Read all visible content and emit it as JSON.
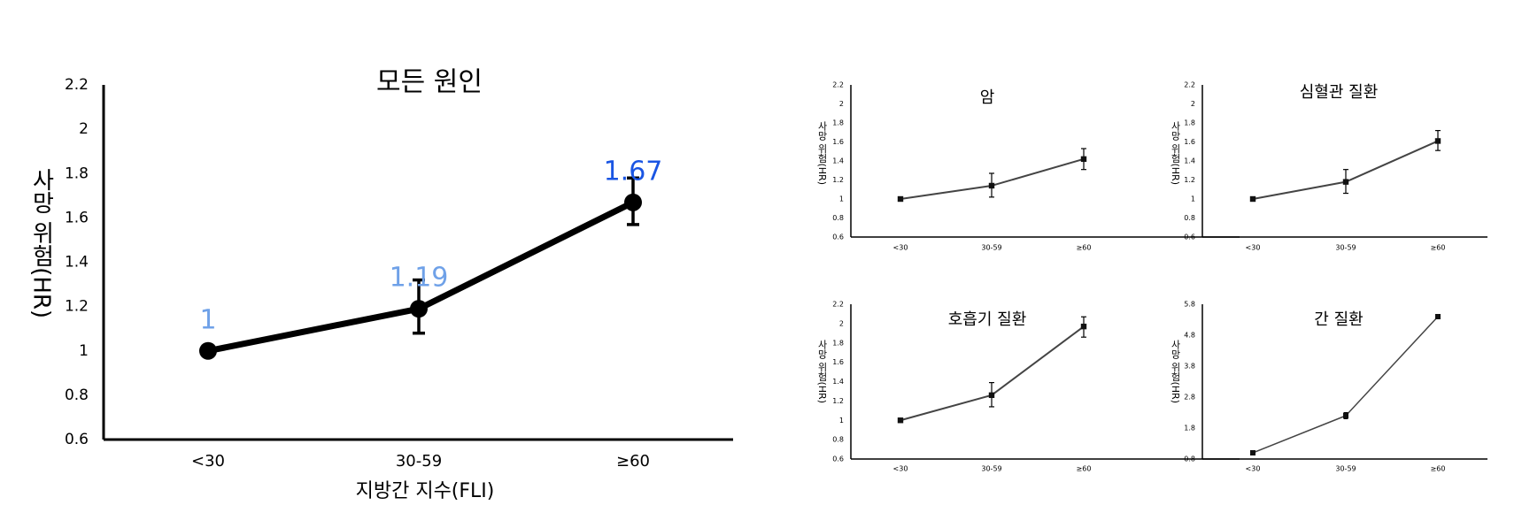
{
  "chart_data": [
    {
      "type": "line",
      "title": "모든 원인",
      "xlabel": "지방간 지수(FLI)",
      "ylabel": "사망 위험(HR)",
      "categories": [
        "<30",
        "30-59",
        "≥60"
      ],
      "values": [
        1,
        1.19,
        1.67
      ],
      "error_low": [
        1,
        1.08,
        1.57
      ],
      "error_high": [
        1,
        1.32,
        1.78
      ],
      "value_labels": [
        "1",
        "1.19",
        "1.67"
      ],
      "value_label_colors": [
        "#6fa1e8",
        "#6fa1e8",
        "#1a55e3"
      ],
      "ylim": [
        0.6,
        2.2
      ],
      "yticks": [
        "0.6",
        "0.8",
        "1",
        "1.2",
        "1.4",
        "1.6",
        "1.8",
        "2",
        "2.2"
      ],
      "ytick_values": [
        0.6,
        0.8,
        1,
        1.2,
        1.4,
        1.6,
        1.8,
        2,
        2.2
      ],
      "grid": false,
      "line_color": "#000000"
    },
    {
      "type": "line",
      "title": "암",
      "xlabel": "",
      "ylabel": "사망 위험(HR)",
      "categories": [
        "<30",
        "30-59",
        "≥60"
      ],
      "values": [
        1,
        1.14,
        1.42
      ],
      "error_low": [
        1,
        1.02,
        1.31
      ],
      "error_high": [
        1,
        1.27,
        1.53
      ],
      "ylim": [
        0.6,
        2.2
      ],
      "yticks": [
        "0.6",
        "0.8",
        "1",
        "1.2",
        "1.4",
        "1.6",
        "1.8",
        "2",
        "2.2"
      ],
      "ytick_values": [
        0.6,
        0.8,
        1,
        1.2,
        1.4,
        1.6,
        1.8,
        2,
        2.2
      ],
      "grid": false,
      "line_color": "#444444"
    },
    {
      "type": "line",
      "title": "심혈관 질환",
      "xlabel": "",
      "ylabel": "사망 위험(HR)",
      "categories": [
        "<30",
        "30-59",
        "≥60"
      ],
      "values": [
        1,
        1.18,
        1.61
      ],
      "error_low": [
        1,
        1.06,
        1.51
      ],
      "error_high": [
        1,
        1.31,
        1.72
      ],
      "ylim": [
        0.6,
        2.2
      ],
      "yticks": [
        "0.6",
        "0.8",
        "1",
        "1.2",
        "1.4",
        "1.6",
        "1.8",
        "2",
        "2.2"
      ],
      "ytick_values": [
        0.6,
        0.8,
        1,
        1.2,
        1.4,
        1.6,
        1.8,
        2,
        2.2
      ],
      "grid": false,
      "line_color": "#444444"
    },
    {
      "type": "line",
      "title": "호흡기 질환",
      "xlabel": "",
      "ylabel": "사망 위험(HR)",
      "categories": [
        "<30",
        "30-59",
        "≥60"
      ],
      "values": [
        1,
        1.26,
        1.97
      ],
      "error_low": [
        1,
        1.14,
        1.86
      ],
      "error_high": [
        1,
        1.39,
        2.07
      ],
      "ylim": [
        0.6,
        2.2
      ],
      "yticks": [
        "0.6",
        "0.8",
        "1",
        "1.2",
        "1.4",
        "1.6",
        "1.8",
        "2",
        "2.2"
      ],
      "ytick_values": [
        0.6,
        0.8,
        1,
        1.2,
        1.4,
        1.6,
        1.8,
        2,
        2.2
      ],
      "grid": false,
      "line_color": "#444444"
    },
    {
      "type": "line",
      "title": "간 질환",
      "xlabel": "",
      "ylabel": "사망 위험(HR)",
      "categories": [
        "<30",
        "30-59",
        "≥60"
      ],
      "values": [
        1,
        2.2,
        5.4
      ],
      "error_low": [
        1,
        2.1,
        5.35
      ],
      "error_high": [
        1,
        2.3,
        5.45
      ],
      "ylim": [
        0.8,
        5.8
      ],
      "yticks": [
        "0.8",
        "1.8",
        "2.8",
        "3.8",
        "4.8",
        "5.8"
      ],
      "ytick_values": [
        0.8,
        1.8,
        2.8,
        3.8,
        4.8,
        5.8
      ],
      "grid": false,
      "line_color": "#444444"
    }
  ]
}
